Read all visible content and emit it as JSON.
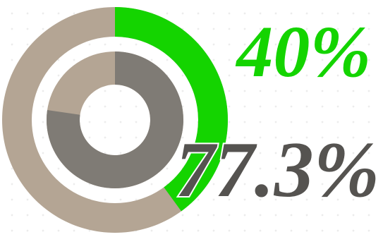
{
  "chart_data": {
    "type": "donut",
    "track_color": "#b4a594",
    "series": [
      {
        "color": "#14d400",
        "values": [
          40
        ],
        "value_labels": [
          "40%"
        ]
      },
      {
        "color": "#7f7b75",
        "values": [
          77.3
        ],
        "value_labels": [
          "77.3%"
        ]
      }
    ]
  }
}
